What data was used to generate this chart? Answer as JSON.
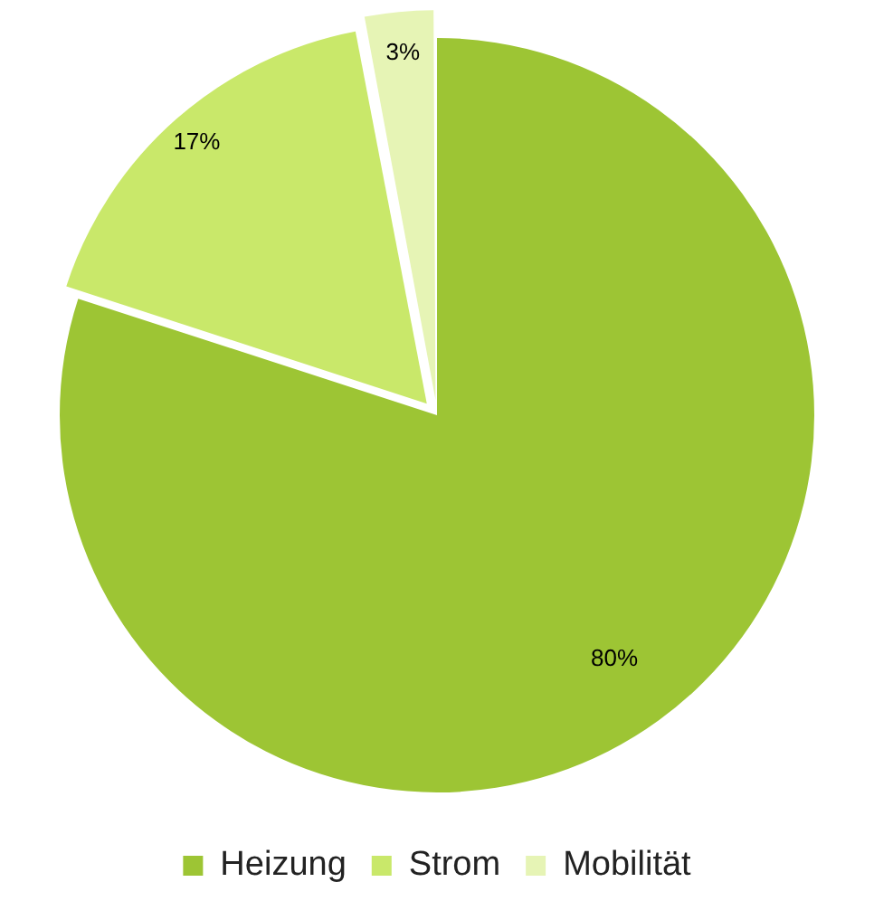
{
  "chart_data": {
    "type": "pie",
    "categories": [
      "Heizung",
      "Strom",
      "Mobilität"
    ],
    "values": [
      80,
      17,
      3
    ],
    "colors": [
      "#9dc534",
      "#c9e86a",
      "#e6f4b5"
    ],
    "value_labels": [
      "80%",
      "17%",
      "3%"
    ],
    "legend": "bottom"
  }
}
